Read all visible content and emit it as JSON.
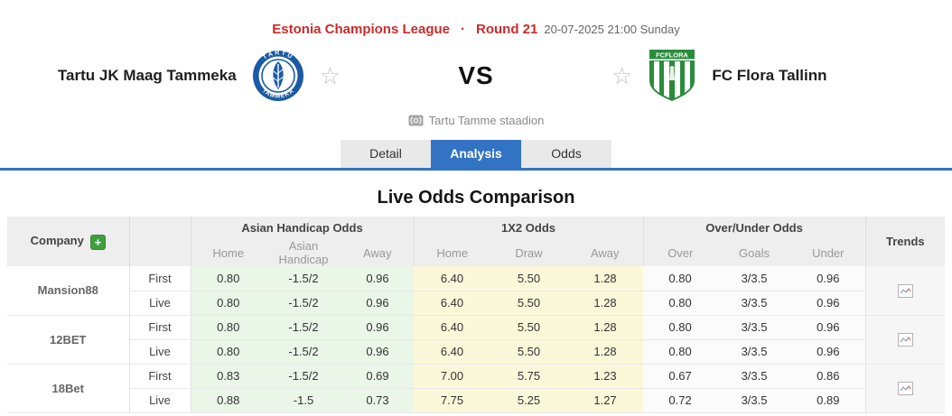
{
  "header": {
    "league": "Estonia Champions League",
    "separator": "·",
    "round": "Round 21",
    "datetime": "20-07-2025 21:00 Sunday"
  },
  "match": {
    "home_team": "Tartu JK Maag Tammeka",
    "away_team": "FC Flora Tallinn",
    "vs": "VS",
    "venue": "Tartu Tamme staadion",
    "home_logo_top": "TARTU",
    "home_logo_bottom": "TAMMEKA",
    "away_logo_text": "FCFLORA"
  },
  "icons": {
    "star": "☆",
    "add": "+"
  },
  "tabs": [
    {
      "label": "Detail",
      "active": false
    },
    {
      "label": "Analysis",
      "active": true
    },
    {
      "label": "Odds",
      "active": false
    }
  ],
  "section_title": "Live Odds Comparison",
  "table": {
    "company_header": "Company",
    "trends_header": "Trends",
    "groups": [
      {
        "label": "Asian Handicap Odds",
        "columns": [
          "Home",
          "Asian Handicap",
          "Away"
        ]
      },
      {
        "label": "1X2 Odds",
        "columns": [
          "Home",
          "Draw",
          "Away"
        ]
      },
      {
        "label": "Over/Under Odds",
        "columns": [
          "Over",
          "Goals",
          "Under"
        ]
      }
    ],
    "rows": [
      {
        "company": "Mansion88",
        "lines": [
          {
            "type": "First",
            "ah": [
              "0.80",
              "-1.5/2",
              "0.96"
            ],
            "x12": [
              "6.40",
              "5.50",
              "1.28"
            ],
            "ou": [
              "0.80",
              "3/3.5",
              "0.96"
            ]
          },
          {
            "type": "Live",
            "ah": [
              "0.80",
              "-1.5/2",
              "0.96"
            ],
            "x12": [
              "6.40",
              "5.50",
              "1.28"
            ],
            "ou": [
              "0.80",
              "3/3.5",
              "0.96"
            ]
          }
        ]
      },
      {
        "company": "12BET",
        "lines": [
          {
            "type": "First",
            "ah": [
              "0.80",
              "-1.5/2",
              "0.96"
            ],
            "x12": [
              "6.40",
              "5.50",
              "1.28"
            ],
            "ou": [
              "0.80",
              "3/3.5",
              "0.96"
            ]
          },
          {
            "type": "Live",
            "ah": [
              "0.80",
              "-1.5/2",
              "0.96"
            ],
            "x12": [
              "6.40",
              "5.50",
              "1.28"
            ],
            "ou": [
              "0.80",
              "3/3.5",
              "0.96"
            ]
          }
        ]
      },
      {
        "company": "18Bet",
        "lines": [
          {
            "type": "First",
            "ah": [
              "0.83",
              "-1.5/2",
              "0.69"
            ],
            "x12": [
              "7.00",
              "5.75",
              "1.23"
            ],
            "ou": [
              "0.67",
              "3/3.5",
              "0.86"
            ]
          },
          {
            "type": "Live",
            "ah": [
              "0.88",
              "-1.5",
              "0.73"
            ],
            "x12": [
              "7.75",
              "5.25",
              "1.27"
            ],
            "ou": [
              "0.72",
              "3/3.5",
              "0.89"
            ]
          }
        ]
      }
    ]
  },
  "colors": {
    "accent_red": "#cb2b2b",
    "accent_blue": "#3373c4",
    "add_button_green": "#3da03d",
    "asian_handicap_bg": "#eaf6e7",
    "x12_bg": "#fbf8da",
    "over_under_bg": "#fbfbfb",
    "table_header_bg": "#eeeeee"
  }
}
